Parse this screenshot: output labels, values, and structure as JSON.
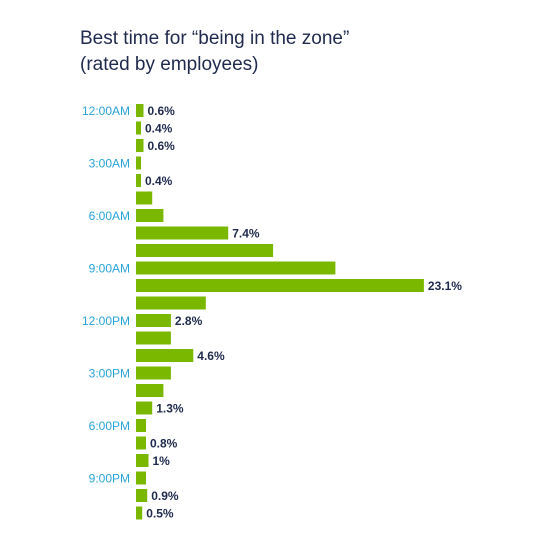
{
  "chart_data": {
    "type": "bar",
    "orientation": "horizontal",
    "title": [
      "Best time for “being in the zone”",
      "(rated by employees)"
    ],
    "xlabel": "",
    "ylabel": "",
    "bar_color": "#7ab800",
    "tick_color": "#2aa3d6",
    "label_color": "#1f2a4d",
    "grid": false,
    "legend": "none",
    "unit": "%",
    "xlim": [
      0,
      26
    ],
    "categories": [
      "12:00AM",
      "",
      "",
      "3:00AM",
      "",
      "",
      "6:00AM",
      "",
      "",
      "9:00AM",
      "",
      "",
      "12:00PM",
      "",
      "",
      "3:00PM",
      "",
      "",
      "6:00PM",
      "",
      "",
      "9:00PM",
      "",
      ""
    ],
    "values": [
      0.6,
      0.4,
      0.6,
      0.4,
      0.4,
      1.3,
      2.2,
      7.4,
      11.0,
      16.0,
      23.1,
      5.6,
      2.8,
      2.8,
      4.6,
      2.8,
      2.2,
      1.3,
      0.8,
      0.8,
      1.0,
      0.8,
      0.9,
      0.5
    ],
    "data_labels": [
      "0.6%",
      "0.4%",
      "0.6%",
      "",
      "0.4%",
      "",
      "",
      "7.4%",
      "",
      "",
      "23.1%",
      "",
      "2.8%",
      "",
      "4.6%",
      "",
      "",
      "1.3%",
      "",
      "0.8%",
      "1%",
      "",
      "0.9%",
      "0.5%"
    ]
  }
}
